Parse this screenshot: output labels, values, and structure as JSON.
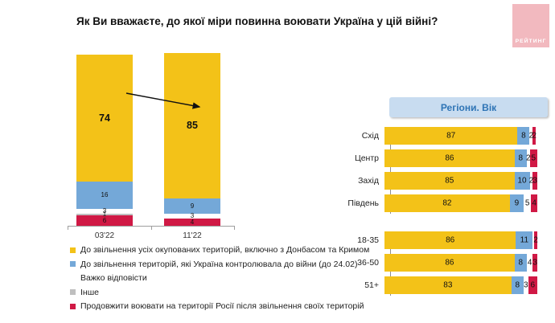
{
  "title": "Як Ви вважаєте, до якої міри повинна воювати Україна у цій війні?",
  "logo": {
    "text": "РЕЙТИНГ",
    "bg": "#F2B9BF",
    "text_color": "#FFFFFF"
  },
  "colors": {
    "full_liberation": "#F3C218",
    "pre_war_borders": "#74A8D8",
    "hard_to_say": "#FFFFFF",
    "other": "#BFBFBF",
    "fight_in_russia": "#D01945",
    "axis": "#9E9E9E",
    "header_chip_bg": "#C8DCF0",
    "header_chip_text": "#2E74B5"
  },
  "legend": {
    "items": [
      {
        "label": "До звільнення усіх окупованих територій, включно з Донбасом та Кримом",
        "color_key": "full_liberation"
      },
      {
        "label": "До звільнення територій, які Україна контролювала до війни (до 24.02)",
        "color_key": "pre_war_borders"
      },
      {
        "label": "Важко відповісти",
        "color_key": "hard_to_say"
      },
      {
        "label": "Інше",
        "color_key": "other"
      },
      {
        "label": "Продовжити воювати на території Росії після звільнення своїх територій",
        "color_key": "fight_in_russia"
      }
    ]
  },
  "chart_data": [
    {
      "id": "trend",
      "type": "bar",
      "stacked": true,
      "orientation": "vertical",
      "categories": [
        "03'22",
        "11'22"
      ],
      "ylim": [
        0,
        100
      ],
      "series": [
        {
          "name": "До звільнення усіх окупованих територій, включно з Донбасом та Кримом",
          "color_key": "full_liberation",
          "values": [
            74,
            85
          ]
        },
        {
          "name": "До звільнення територій, які Україна контролювала до війни (до 24.02)",
          "color_key": "pre_war_borders",
          "values": [
            16,
            9
          ]
        },
        {
          "name": "Важко відповісти",
          "color_key": "hard_to_say",
          "values": [
            3,
            3
          ]
        },
        {
          "name": "Інше",
          "color_key": "other",
          "values": [
            1,
            0
          ]
        },
        {
          "name": "Продовжити воювати на території Росії після звільнення своїх територій",
          "color_key": "fight_in_russia",
          "values": [
            6,
            4
          ]
        }
      ],
      "annotation": {
        "type": "arrow",
        "note": "зростання з 74 до 85"
      }
    },
    {
      "id": "breakdown",
      "type": "bar",
      "stacked": true,
      "orientation": "horizontal",
      "title": "Регіони. Вік",
      "xlim": [
        0,
        100
      ],
      "series_order": [
        "full_liberation",
        "pre_war_borders",
        "hard_to_say",
        "other",
        "fight_in_russia"
      ],
      "groups": [
        {
          "name": "regions",
          "rows": [
            {
              "label": "Схід",
              "values": [
                87,
                8,
                2,
                0,
                2
              ]
            },
            {
              "label": "Центр",
              "values": [
                86,
                8,
                2,
                0,
                5
              ]
            },
            {
              "label": "Захід",
              "values": [
                85,
                10,
                2,
                0,
                3
              ]
            },
            {
              "label": "Південь",
              "values": [
                82,
                9,
                5,
                0,
                4
              ]
            }
          ]
        },
        {
          "name": "age",
          "rows": [
            {
              "label": "18-35",
              "values": [
                86,
                11,
                1,
                0,
                2
              ]
            },
            {
              "label": "36-50",
              "values": [
                86,
                8,
                4,
                0,
                3
              ]
            },
            {
              "label": "51+",
              "values": [
                83,
                8,
                3,
                0,
                6
              ]
            }
          ]
        }
      ]
    }
  ]
}
